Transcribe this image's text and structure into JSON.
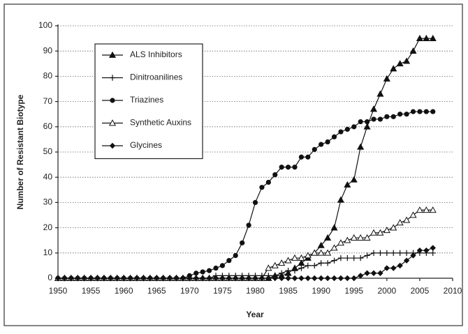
{
  "chart_data": {
    "type": "line",
    "x_label": "Year",
    "y_label": "Number of Resistant Biotype",
    "x": [
      1950,
      1951,
      1952,
      1953,
      1954,
      1955,
      1956,
      1957,
      1958,
      1959,
      1960,
      1961,
      1962,
      1963,
      1964,
      1965,
      1966,
      1967,
      1968,
      1969,
      1970,
      1971,
      1972,
      1973,
      1974,
      1975,
      1976,
      1977,
      1978,
      1979,
      1980,
      1981,
      1982,
      1983,
      1984,
      1985,
      1986,
      1987,
      1988,
      1989,
      1990,
      1991,
      1992,
      1993,
      1994,
      1995,
      1996,
      1997,
      1998,
      1999,
      2000,
      2001,
      2002,
      2003,
      2004,
      2005,
      2006,
      2007
    ],
    "xlim": [
      1950,
      2010
    ],
    "xticks": [
      1950,
      1955,
      1960,
      1965,
      1970,
      1975,
      1980,
      1985,
      1990,
      1995,
      2000,
      2005,
      2010
    ],
    "ylim": [
      0,
      100
    ],
    "yticks": [
      0,
      10,
      20,
      30,
      40,
      50,
      60,
      70,
      80,
      90,
      100
    ],
    "grid": true,
    "legend": "upper left",
    "series": [
      {
        "name": "ALS Inhibitors",
        "color": "#111111",
        "marker": "triangle",
        "values": [
          0,
          0,
          0,
          0,
          0,
          0,
          0,
          0,
          0,
          0,
          0,
          0,
          0,
          0,
          0,
          0,
          0,
          0,
          0,
          0,
          0,
          0,
          0,
          0,
          0,
          0,
          0,
          0,
          0,
          0,
          0,
          0,
          0,
          1,
          1,
          2,
          4,
          6,
          8,
          10,
          13,
          16,
          20,
          31,
          37,
          39,
          52,
          60,
          67,
          73,
          79,
          83,
          85,
          86,
          90,
          95,
          95,
          95
        ]
      },
      {
        "name": "Dinitroanilines",
        "color": "#111111",
        "marker": "plus",
        "values": [
          0,
          0,
          0,
          0,
          0,
          0,
          0,
          0,
          0,
          0,
          0,
          0,
          0,
          0,
          0,
          0,
          0,
          0,
          0,
          0,
          0,
          0,
          0,
          0,
          1,
          1,
          1,
          1,
          1,
          1,
          1,
          1,
          1,
          1,
          2,
          3,
          3,
          4,
          5,
          5,
          6,
          6,
          7,
          8,
          8,
          8,
          8,
          9,
          10,
          10,
          10,
          10,
          10,
          10,
          10,
          10,
          10,
          10
        ]
      },
      {
        "name": "Triazines",
        "color": "#111111",
        "marker": "circle",
        "values": [
          0,
          0,
          0,
          0,
          0,
          0,
          0,
          0,
          0,
          0,
          0,
          0,
          0,
          0,
          0,
          0,
          0,
          0,
          0,
          0,
          1,
          2,
          2.5,
          3,
          4,
          5,
          7,
          9,
          14,
          21,
          30,
          36,
          38,
          41,
          44,
          44,
          44,
          48,
          48,
          51,
          53,
          54,
          56,
          58,
          59,
          60,
          62,
          62,
          63,
          63,
          64,
          64,
          65,
          65,
          66,
          66,
          66,
          66
        ]
      },
      {
        "name": "Synthetic Auxins",
        "color": "#111111",
        "marker": "open-triangle",
        "values": [
          0,
          0,
          0,
          0,
          0,
          0,
          0,
          0,
          0,
          0,
          0,
          0,
          0,
          0,
          0,
          0,
          0,
          0,
          0,
          0,
          0,
          0,
          0,
          0,
          0,
          0,
          0,
          0,
          0,
          0,
          0,
          0,
          4,
          5,
          6,
          7,
          8,
          8,
          9,
          10,
          10,
          10,
          12,
          14,
          15,
          16,
          16,
          16,
          18,
          18,
          19,
          20,
          22,
          23,
          25,
          27,
          27,
          27
        ]
      },
      {
        "name": "Glycines",
        "color": "#111111",
        "marker": "diamond",
        "values": [
          0,
          0,
          0,
          0,
          0,
          0,
          0,
          0,
          0,
          0,
          0,
          0,
          0,
          0,
          0,
          0,
          0,
          0,
          0,
          0,
          0,
          0,
          0,
          0,
          0,
          0,
          0,
          0,
          0,
          0,
          0,
          0,
          0,
          0,
          0,
          0,
          0,
          0,
          0,
          0,
          0,
          0,
          0,
          0,
          0,
          0,
          1,
          2,
          2,
          2,
          4,
          4,
          5,
          7,
          9,
          11,
          11,
          12
        ]
      }
    ]
  }
}
